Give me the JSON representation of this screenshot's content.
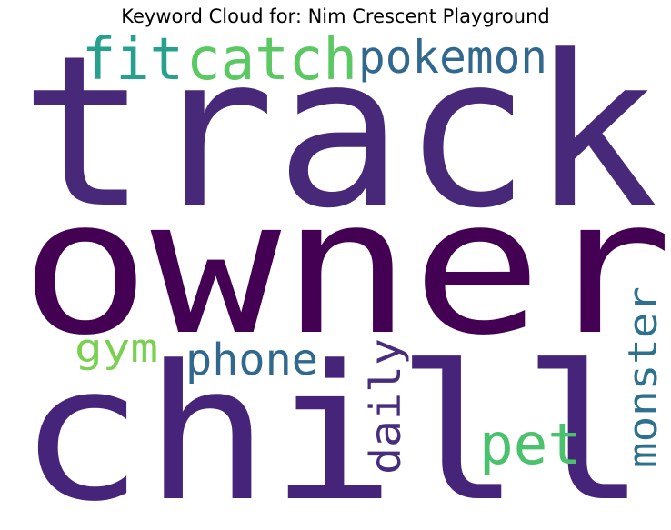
{
  "title": "Keyword Cloud for: Nim Crescent Playground",
  "chart_data": {
    "type": "wordcloud",
    "title": "Keyword Cloud for: Nim Crescent Playground",
    "words": [
      {
        "text": "track",
        "weight": 1.0,
        "color": "#482878",
        "orientation": "horizontal"
      },
      {
        "text": "owner",
        "weight": 0.95,
        "color": "#440154",
        "orientation": "horizontal"
      },
      {
        "text": "chill",
        "weight": 0.92,
        "color": "#46247a",
        "orientation": "horizontal"
      },
      {
        "text": "fit",
        "weight": 0.32,
        "color": "#25a18e",
        "orientation": "horizontal"
      },
      {
        "text": "catch",
        "weight": 0.32,
        "color": "#5cc863",
        "orientation": "horizontal"
      },
      {
        "text": "pokemon",
        "weight": 0.25,
        "color": "#31688e",
        "orientation": "horizontal"
      },
      {
        "text": "gym",
        "weight": 0.2,
        "color": "#7ad151",
        "orientation": "horizontal"
      },
      {
        "text": "phone",
        "weight": 0.22,
        "color": "#31688e",
        "orientation": "horizontal"
      },
      {
        "text": "daily",
        "weight": 0.23,
        "color": "#472d7b",
        "orientation": "vertical"
      },
      {
        "text": "pet",
        "weight": 0.25,
        "color": "#4ac16d",
        "orientation": "horizontal"
      },
      {
        "text": "monster",
        "weight": 0.21,
        "color": "#2c718e",
        "orientation": "vertical"
      }
    ]
  }
}
